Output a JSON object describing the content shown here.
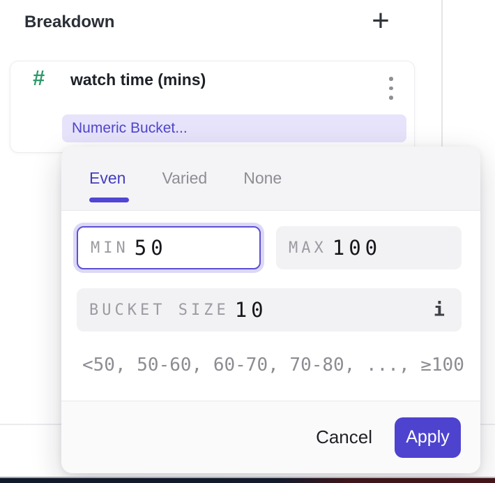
{
  "header": {
    "title": "Breakdown",
    "add_icon": "+"
  },
  "card": {
    "numeric_type_icon": "#",
    "property_name": "watch time (mins)",
    "bucketing_label": "Numeric Bucket..."
  },
  "popup": {
    "tabs": [
      {
        "label": "Even",
        "active": true
      },
      {
        "label": "Varied",
        "active": false
      },
      {
        "label": "None",
        "active": false
      }
    ],
    "min": {
      "label": "MIN",
      "value": "50"
    },
    "max": {
      "label": "MAX",
      "value": "100"
    },
    "bucket_size": {
      "label": "BUCKET SIZE",
      "value": "10",
      "info_icon": "i"
    },
    "preview": "<50, 50-60, 60-70, 70-80, ..., ≥100",
    "cancel_label": "Cancel",
    "apply_label": "Apply"
  },
  "colors": {
    "accent": "#4d43cf",
    "accent_text": "#4f46c9",
    "active_tab": "#443cc1",
    "pill_bg": "#e7e3fb",
    "numeric_green": "#2f9a6c",
    "input_bg": "#f2f2f4",
    "focus_border": "#5b50d4",
    "focus_ring": "#dcd8f6",
    "popup_header_bg": "#f4f4f6",
    "bottom_bar_navy": "#111a2b",
    "bottom_bar_maroon": "#3f151a"
  }
}
